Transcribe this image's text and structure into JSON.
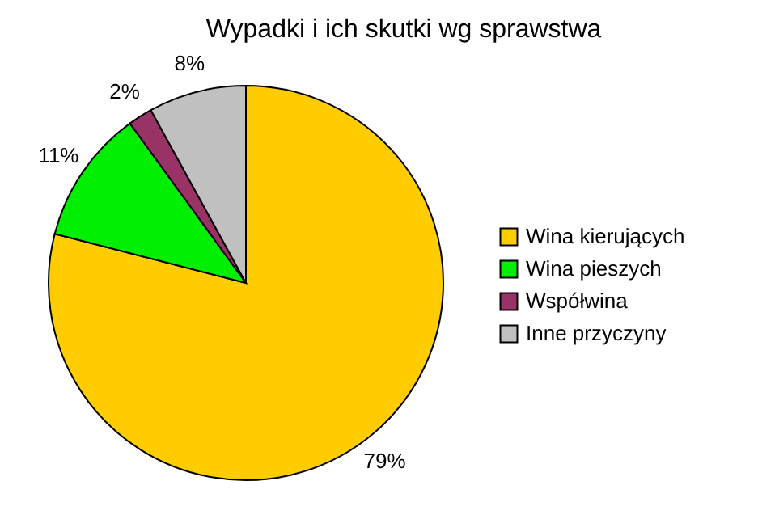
{
  "chart_data": {
    "type": "pie",
    "title": "Wypadki i ich skutki wg sprawstwa",
    "categories": [
      "Wina kierujących",
      "Wina pieszych",
      "Współwina",
      "Inne przyczyny"
    ],
    "values": [
      79,
      11,
      2,
      8
    ],
    "colors": [
      "#ffcc00",
      "#00ee00",
      "#993366",
      "#c0c0c0"
    ],
    "value_labels": [
      "79%",
      "11%",
      "2%",
      "8%"
    ],
    "legend": "right"
  }
}
